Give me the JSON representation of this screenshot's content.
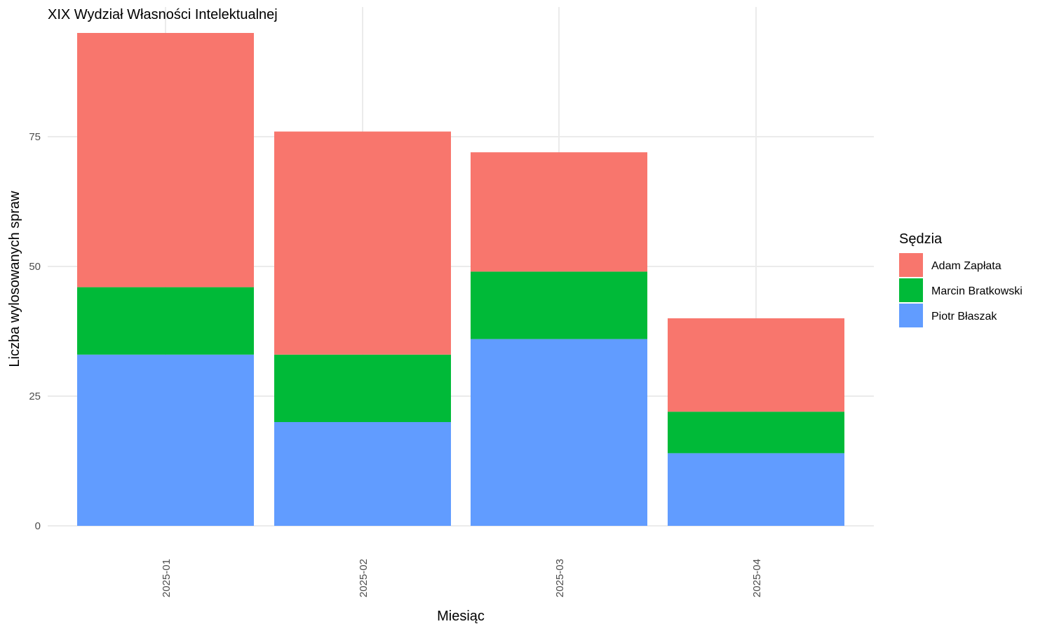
{
  "chart_data": {
    "type": "bar",
    "stacked": true,
    "title": "XIX Wydział Własności Intelektualnej",
    "xlabel": "Miesiąc",
    "ylabel": "Liczba wylosowanych spraw",
    "categories": [
      "2025-01",
      "2025-02",
      "2025-03",
      "2025-04"
    ],
    "series": [
      {
        "name": "Piotr Błaszak",
        "color": "#619CFF",
        "values": [
          33,
          20,
          36,
          14
        ]
      },
      {
        "name": "Marcin Bratkowski",
        "color": "#00BA38",
        "values": [
          13,
          13,
          13,
          8
        ]
      },
      {
        "name": "Adam Zapłata",
        "color": "#F8766D",
        "values": [
          49,
          43,
          23,
          18
        ]
      }
    ],
    "ylim": [
      0,
      97
    ],
    "yticks": [
      0,
      25,
      50,
      75
    ],
    "grid": true,
    "x_tick_rotation": -90,
    "legend": {
      "title": "Sędzia",
      "position": "right",
      "entries": [
        "Adam Zapłata",
        "Marcin Bratkowski",
        "Piotr Błaszak"
      ]
    }
  }
}
